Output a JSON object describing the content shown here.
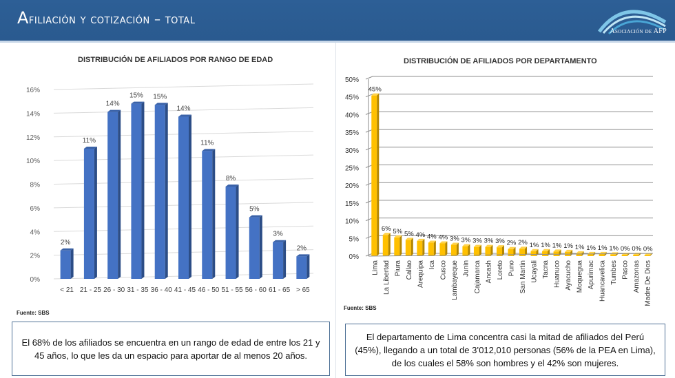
{
  "header": {
    "title_first": "A",
    "title_rest": "filiación y cotización – total",
    "logo_text": "Asociación de AFP"
  },
  "colors": {
    "header_bg": "#2d5f96",
    "age_bar": "#4472c4",
    "dept_bar": "#ffc000"
  },
  "chart_data": [
    {
      "type": "bar",
      "title": "DISTRIBUCIÓN DE AFILIADOS POR RANGO DE EDAD",
      "categories": [
        "< 21",
        "21 - 25",
        "26 - 30",
        "31 - 35",
        "36 - 40",
        "41 - 45",
        "46 - 50",
        "51 - 55",
        "56 - 60",
        "61 - 65",
        "> 65"
      ],
      "values": [
        2.4,
        11.0,
        14.1,
        14.8,
        14.7,
        13.7,
        10.8,
        7.8,
        5.2,
        3.1,
        1.9
      ],
      "data_labels": [
        "2%",
        "11%",
        "14%",
        "15%",
        "15%",
        "14%",
        "11%",
        "8%",
        "5%",
        "3%",
        "2%"
      ],
      "xlabel": "",
      "ylabel": "",
      "ylim": [
        0,
        16
      ],
      "yticks": [
        "0%",
        "2%",
        "4%",
        "6%",
        "8%",
        "10%",
        "12%",
        "14%",
        "16%"
      ],
      "grid": true,
      "source": "Fuente: SBS"
    },
    {
      "type": "bar",
      "title": "DISTRIBUCIÓN DE AFILIADOS POR DEPARTAMENTO",
      "categories": [
        "Lima",
        "La Libertad",
        "Piura",
        "Callao",
        "Arequipa",
        "Ica",
        "Cusco",
        "Lambayeque",
        "Junin",
        "Cajamarca",
        "Ancash",
        "Loreto",
        "Puno",
        "San Martin",
        "Ucayali",
        "Tacna",
        "Huanuco",
        "Ayacucho",
        "Moquegua",
        "Apurimac",
        "Huancavelica",
        "Tumbes",
        "Pasco",
        "Amazonas",
        "Madre De Dios"
      ],
      "values": [
        45.4,
        6.0,
        5.3,
        4.6,
        4.3,
        3.8,
        3.6,
        3.2,
        2.8,
        2.6,
        2.6,
        2.5,
        2.0,
        2.1,
        1.4,
        1.4,
        1.3,
        1.2,
        0.8,
        0.6,
        0.6,
        0.5,
        0.4,
        0.4,
        0.3
      ],
      "data_labels": [
        "45%",
        "6%",
        "5%",
        "5%",
        "4%",
        "4%",
        "4%",
        "3%",
        "3%",
        "3%",
        "3%",
        "3%",
        "2%",
        "2%",
        "1%",
        "1%",
        "1%",
        "1%",
        "1%",
        "1%",
        "1%",
        "1%",
        "0%",
        "0%",
        "0%"
      ],
      "xlabel": "",
      "ylabel": "",
      "ylim": [
        0,
        50
      ],
      "yticks": [
        "0%",
        "5%",
        "10%",
        "15%",
        "20%",
        "25%",
        "30%",
        "35%",
        "40%",
        "45%",
        "50%"
      ],
      "grid": true,
      "source": "Fuente: SBS"
    }
  ],
  "notes": {
    "age": "El 68% de los afiliados se encuentra en un rango de edad de entre los 21 y 45 años, lo que les da un espacio para aportar de al menos 20 años.",
    "dept": "El departamento de Lima concentra casi la mitad de afiliados del Perú (45%), llegando a un total de 3’012,010 personas (56% de la PEA en Lima), de los cuales el 58% son hombres y el 42% son mujeres."
  }
}
